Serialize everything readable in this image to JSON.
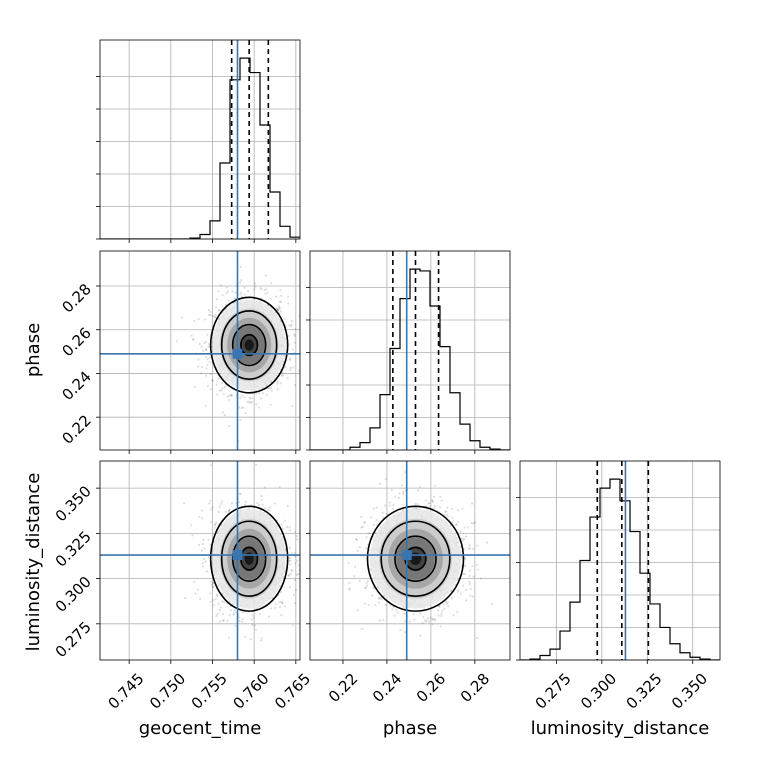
{
  "chart_data": {
    "type": "corner",
    "parameters": [
      "geocent_time",
      "phase",
      "luminosity_distance"
    ],
    "truths": {
      "geocent_time": 0.758,
      "phase": 0.249,
      "luminosity_distance": 0.313
    },
    "quantiles": {
      "geocent_time": [
        0.7573,
        0.7594,
        0.7617
      ],
      "phase": [
        0.2427,
        0.253,
        0.2635
      ],
      "luminosity_distance": [
        0.2975,
        0.311,
        0.3256
      ]
    },
    "ranges": {
      "geocent_time": [
        0.7415,
        0.7655
      ],
      "phase": [
        0.205,
        0.296
      ],
      "luminosity_distance": [
        0.255,
        0.365
      ]
    },
    "ticks": {
      "geocent_time": [
        "0.745",
        "0.750",
        "0.755",
        "0.760",
        "0.765"
      ],
      "phase": [
        "0.22",
        "0.24",
        "0.26",
        "0.28"
      ],
      "luminosity_distance": [
        "0.275",
        "0.300",
        "0.325",
        "0.350"
      ]
    },
    "histograms": {
      "geocent_time": {
        "edges_start": 0.7415,
        "bin_width": 0.0012,
        "counts": [
          0,
          0,
          0,
          0,
          0,
          0,
          0,
          0,
          0,
          0.5,
          2.5,
          10,
          42,
          88,
          100,
          92,
          63,
          26,
          7,
          1
        ]
      },
      "phase": {
        "edges_start": 0.205,
        "bin_width": 0.00455,
        "counts": [
          0,
          0,
          0,
          0,
          1.5,
          4,
          12,
          30,
          55,
          82,
          98,
          97,
          78,
          56,
          31,
          14,
          5,
          1.5,
          0.5,
          0
        ]
      },
      "luminosity_distance": {
        "edges_start": 0.255,
        "bin_width": 0.0055,
        "counts": [
          0,
          0.5,
          2.5,
          6,
          16,
          32,
          55,
          79,
          95,
          100,
          88,
          71,
          48,
          31,
          18,
          9,
          4,
          1.5,
          0.5,
          0
        ]
      }
    },
    "pairs": [
      {
        "x": "geocent_time",
        "y": "phase",
        "center": [
          0.7594,
          0.253
        ],
        "sigma": [
          0.0022,
          0.0104
        ]
      },
      {
        "x": "geocent_time",
        "y": "luminosity_distance",
        "center": [
          0.7594,
          0.311
        ],
        "sigma": [
          0.0022,
          0.0138
        ]
      },
      {
        "x": "phase",
        "y": "luminosity_distance",
        "center": [
          0.253,
          0.311
        ],
        "sigma": [
          0.0104,
          0.0138
        ]
      }
    ],
    "grid": true
  },
  "labels": {
    "geocent_time": "geocent_time",
    "phase": "phase",
    "luminosity_distance": "luminosity_distance"
  }
}
